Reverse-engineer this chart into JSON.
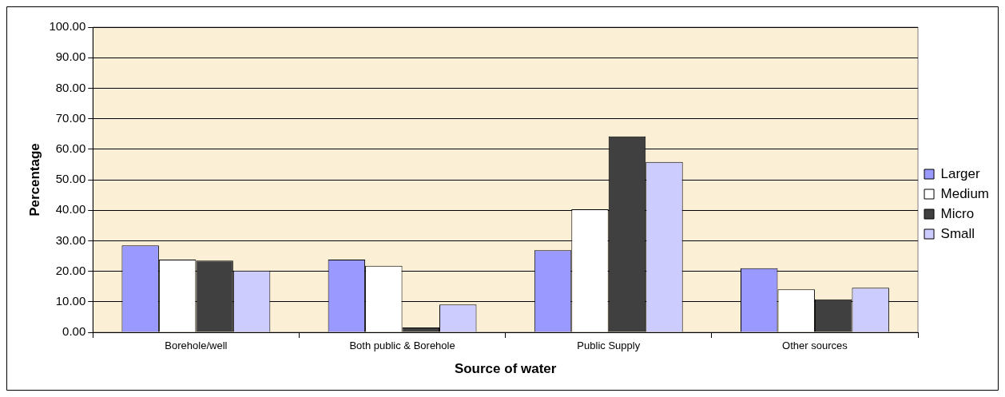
{
  "chart_data": {
    "type": "bar",
    "xlabel": "Source of water",
    "ylabel": "Percentage",
    "categories": [
      "Borehole/well",
      "Both public & Borehole",
      "Public Supply",
      "Other sources"
    ],
    "series": [
      {
        "name": "Larger",
        "color": "#9999ff",
        "values": [
          28.5,
          23.8,
          26.9,
          21.0
        ]
      },
      {
        "name": "Medium",
        "color": "#ffffff",
        "values": [
          23.8,
          21.8,
          40.3,
          14.1
        ]
      },
      {
        "name": "Micro",
        "color": "#404040",
        "values": [
          23.5,
          1.6,
          64.2,
          10.8
        ]
      },
      {
        "name": "Small",
        "color": "#ccccff",
        "values": [
          20.2,
          9.1,
          55.8,
          14.6
        ]
      }
    ],
    "ylim": [
      0,
      100
    ],
    "yticks": [
      {
        "value": 0,
        "label": "0.00"
      },
      {
        "value": 10,
        "label": "10.00"
      },
      {
        "value": 20,
        "label": "20.00"
      },
      {
        "value": 30,
        "label": "30.00"
      },
      {
        "value": 40,
        "label": "40.00"
      },
      {
        "value": 50,
        "label": "50.00"
      },
      {
        "value": 60,
        "label": "60.00"
      },
      {
        "value": 70,
        "label": "70.00"
      },
      {
        "value": 80,
        "label": "80.00"
      },
      {
        "value": 90,
        "label": "90.00"
      },
      {
        "value": 100,
        "label": "100.00"
      }
    ],
    "grid": "y",
    "legend": "right"
  }
}
